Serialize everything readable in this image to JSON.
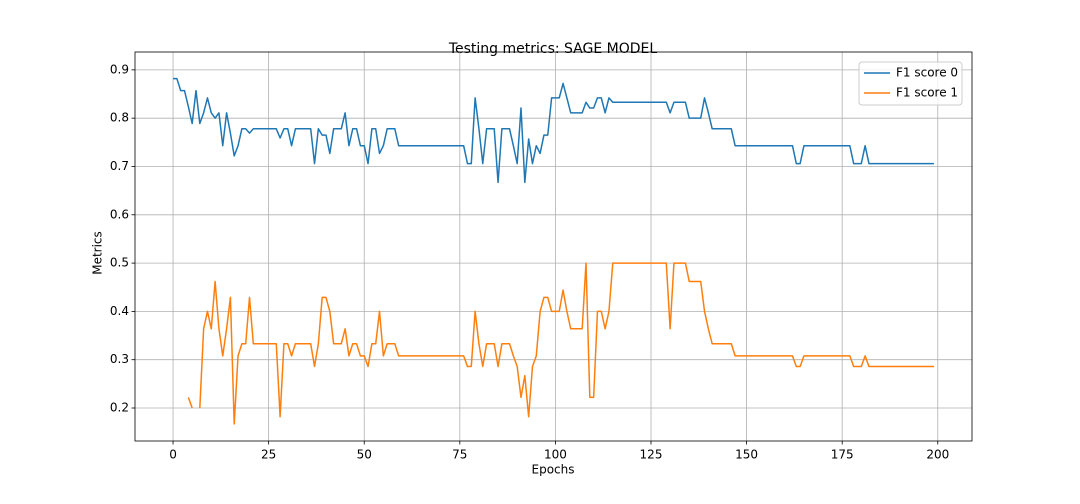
{
  "chart_data": {
    "type": "line",
    "title": "Testing metrics: SAGE MODEL",
    "x_label": "Epochs",
    "y_label": "Metrics",
    "x": [
      0,
      1,
      2,
      3,
      4,
      5,
      6,
      7,
      8,
      9,
      10,
      11,
      12,
      13,
      14,
      15,
      16,
      17,
      18,
      19,
      20,
      21,
      22,
      23,
      24,
      25,
      26,
      27,
      28,
      29,
      30,
      31,
      32,
      33,
      34,
      35,
      36,
      37,
      38,
      39,
      40,
      41,
      42,
      43,
      44,
      45,
      46,
      47,
      48,
      49,
      50,
      51,
      52,
      53,
      54,
      55,
      56,
      57,
      58,
      59,
      60,
      61,
      62,
      63,
      64,
      65,
      66,
      67,
      68,
      69,
      70,
      71,
      72,
      73,
      74,
      75,
      76,
      77,
      78,
      79,
      80,
      81,
      82,
      83,
      84,
      85,
      86,
      87,
      88,
      89,
      90,
      91,
      92,
      93,
      94,
      95,
      96,
      97,
      98,
      99,
      100,
      101,
      102,
      103,
      104,
      105,
      106,
      107,
      108,
      109,
      110,
      111,
      112,
      113,
      114,
      115,
      116,
      117,
      118,
      119,
      120,
      121,
      122,
      123,
      124,
      125,
      126,
      127,
      128,
      129,
      130,
      131,
      132,
      133,
      134,
      135,
      136,
      137,
      138,
      139,
      140,
      141,
      142,
      143,
      144,
      145,
      146,
      147,
      148,
      149,
      150,
      151,
      152,
      153,
      154,
      155,
      156,
      157,
      158,
      159,
      160,
      161,
      162,
      163,
      164,
      165,
      166,
      167,
      168,
      169,
      170,
      171,
      172,
      173,
      174,
      175,
      176,
      177,
      178,
      179,
      180,
      181,
      182,
      183,
      184,
      185,
      186,
      187,
      188,
      189,
      190,
      191,
      192,
      193,
      194,
      195,
      196,
      197,
      198,
      199
    ],
    "series": [
      {
        "name": "F1 score 0",
        "color": "#1f77b4",
        "values": [
          0.882,
          0.882,
          0.857,
          0.857,
          0.824,
          0.789,
          0.857,
          0.789,
          0.811,
          0.842,
          0.811,
          0.8,
          0.811,
          0.743,
          0.811,
          0.769,
          0.722,
          0.743,
          0.778,
          0.778,
          0.769,
          0.778,
          0.778,
          0.778,
          0.778,
          0.778,
          0.778,
          0.778,
          0.759,
          0.778,
          0.778,
          0.743,
          0.778,
          0.778,
          0.778,
          0.778,
          0.778,
          0.706,
          0.778,
          0.765,
          0.765,
          0.727,
          0.778,
          0.778,
          0.778,
          0.811,
          0.743,
          0.778,
          0.778,
          0.743,
          0.743,
          0.706,
          0.778,
          0.778,
          0.727,
          0.743,
          0.778,
          0.778,
          0.778,
          0.743,
          0.743,
          0.743,
          0.743,
          0.743,
          0.743,
          0.743,
          0.743,
          0.743,
          0.743,
          0.743,
          0.743,
          0.743,
          0.743,
          0.743,
          0.743,
          0.743,
          0.743,
          0.706,
          0.706,
          0.842,
          0.778,
          0.706,
          0.778,
          0.778,
          0.778,
          0.667,
          0.778,
          0.778,
          0.778,
          0.743,
          0.706,
          0.821,
          0.667,
          0.757,
          0.706,
          0.743,
          0.727,
          0.765,
          0.765,
          0.842,
          0.842,
          0.842,
          0.872,
          0.842,
          0.811,
          0.811,
          0.811,
          0.811,
          0.833,
          0.821,
          0.821,
          0.842,
          0.842,
          0.811,
          0.842,
          0.833,
          0.833,
          0.833,
          0.833,
          0.833,
          0.833,
          0.833,
          0.833,
          0.833,
          0.833,
          0.833,
          0.833,
          0.833,
          0.833,
          0.833,
          0.811,
          0.833,
          0.833,
          0.833,
          0.833,
          0.8,
          0.8,
          0.8,
          0.8,
          0.842,
          0.811,
          0.778,
          0.778,
          0.778,
          0.778,
          0.778,
          0.778,
          0.743,
          0.743,
          0.743,
          0.743,
          0.743,
          0.743,
          0.743,
          0.743,
          0.743,
          0.743,
          0.743,
          0.743,
          0.743,
          0.743,
          0.743,
          0.743,
          0.706,
          0.706,
          0.743,
          0.743,
          0.743,
          0.743,
          0.743,
          0.743,
          0.743,
          0.743,
          0.743,
          0.743,
          0.743,
          0.743,
          0.743,
          0.706,
          0.706,
          0.706,
          0.743,
          0.706,
          0.706,
          0.706,
          0.706,
          0.706,
          0.706,
          0.706,
          0.706,
          0.706,
          0.706,
          0.706,
          0.706,
          0.706,
          0.706,
          0.706,
          0.706,
          0.706,
          0.706
        ]
      },
      {
        "name": "F1 score 1",
        "color": "#ff7f0e",
        "values": [
          null,
          null,
          null,
          null,
          0.222,
          0.2,
          null,
          0.2,
          0.364,
          0.4,
          0.364,
          0.462,
          0.364,
          0.308,
          0.364,
          0.429,
          0.167,
          0.308,
          0.333,
          0.333,
          0.429,
          0.333,
          0.333,
          0.333,
          0.333,
          0.333,
          0.333,
          0.333,
          0.182,
          0.333,
          0.333,
          0.308,
          0.333,
          0.333,
          0.333,
          0.333,
          0.333,
          0.286,
          0.333,
          0.429,
          0.429,
          0.4,
          0.333,
          0.333,
          0.333,
          0.364,
          0.308,
          0.333,
          0.333,
          0.308,
          0.308,
          0.286,
          0.333,
          0.333,
          0.4,
          0.308,
          0.333,
          0.333,
          0.333,
          0.308,
          0.308,
          0.308,
          0.308,
          0.308,
          0.308,
          0.308,
          0.308,
          0.308,
          0.308,
          0.308,
          0.308,
          0.308,
          0.308,
          0.308,
          0.308,
          0.308,
          0.308,
          0.286,
          0.286,
          0.4,
          0.333,
          0.286,
          0.333,
          0.333,
          0.333,
          0.286,
          0.333,
          0.333,
          0.333,
          0.308,
          0.286,
          0.222,
          0.267,
          0.182,
          0.286,
          0.308,
          0.4,
          0.429,
          0.429,
          0.4,
          0.4,
          0.4,
          0.444,
          0.4,
          0.364,
          0.364,
          0.364,
          0.364,
          0.5,
          0.222,
          0.222,
          0.4,
          0.4,
          0.364,
          0.4,
          0.5,
          0.5,
          0.5,
          0.5,
          0.5,
          0.5,
          0.5,
          0.5,
          0.5,
          0.5,
          0.5,
          0.5,
          0.5,
          0.5,
          0.5,
          0.364,
          0.5,
          0.5,
          0.5,
          0.5,
          0.462,
          0.462,
          0.462,
          0.462,
          0.4,
          0.364,
          0.333,
          0.333,
          0.333,
          0.333,
          0.333,
          0.333,
          0.308,
          0.308,
          0.308,
          0.308,
          0.308,
          0.308,
          0.308,
          0.308,
          0.308,
          0.308,
          0.308,
          0.308,
          0.308,
          0.308,
          0.308,
          0.308,
          0.286,
          0.286,
          0.308,
          0.308,
          0.308,
          0.308,
          0.308,
          0.308,
          0.308,
          0.308,
          0.308,
          0.308,
          0.308,
          0.308,
          0.308,
          0.286,
          0.286,
          0.286,
          0.308,
          0.286,
          0.286,
          0.286,
          0.286,
          0.286,
          0.286,
          0.286,
          0.286,
          0.286,
          0.286,
          0.286,
          0.286,
          0.286,
          0.286,
          0.286,
          0.286,
          0.286,
          0.286
        ]
      }
    ],
    "xlim": [
      -9.95,
      208.95
    ],
    "xticks": [
      0,
      25,
      50,
      75,
      100,
      125,
      150,
      175,
      200
    ],
    "ylim": [
      0.1317,
      0.937
    ],
    "yticks": [
      0.2,
      0.3,
      0.4,
      0.5,
      0.6,
      0.7,
      0.8,
      0.9
    ],
    "grid": true,
    "legend": "upper-right"
  }
}
